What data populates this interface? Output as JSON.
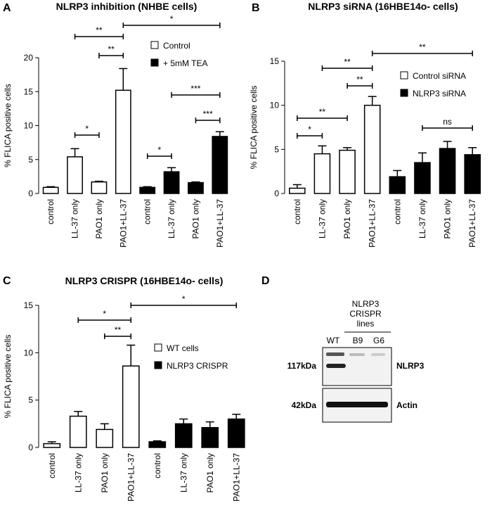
{
  "chart_data": [
    {
      "type": "bar",
      "panel_label": "A",
      "title": "NLRP3 inhibition (NHBE cells)",
      "y_label": "% FLICA positive cells",
      "categories": [
        "control",
        "LL-37 only",
        "PAO1 only",
        "PAO1+LL-37",
        "control",
        "LL-37 only",
        "PAO1 only",
        "PAO1+LL-37"
      ],
      "series": [
        {
          "name": "Control",
          "color": "#ffffff",
          "values": [
            0.9,
            5.4,
            1.7,
            15.2,
            null,
            null,
            null,
            null
          ],
          "errors": [
            0.1,
            1.2,
            0.1,
            3.2,
            null,
            null,
            null,
            null
          ]
        },
        {
          "name": "+ 5mM TEA",
          "color": "#000000",
          "values": [
            null,
            null,
            null,
            null,
            0.9,
            3.2,
            1.6,
            8.4
          ],
          "errors": [
            null,
            null,
            null,
            null,
            0.1,
            0.6,
            0.1,
            0.7
          ]
        }
      ],
      "ylim": [
        0,
        20
      ],
      "yticks": [
        0,
        5,
        10,
        15,
        20
      ],
      "annotations": [
        "**",
        "**",
        "*",
        "*",
        "*",
        "***",
        "***"
      ]
    },
    {
      "type": "bar",
      "panel_label": "B",
      "title": "NLRP3 siRNA (16HBE14o- cells)",
      "y_label": "% FLICA positive cells",
      "categories": [
        "control",
        "LL-37 only",
        "PAO1 only",
        "PAO1+LL-37",
        "control",
        "LL-37 only",
        "PAO1 only",
        "PAO1+LL-37"
      ],
      "series": [
        {
          "name": "Control siRNA",
          "color": "#ffffff",
          "values": [
            0.6,
            4.5,
            4.9,
            10,
            null,
            null,
            null,
            null
          ],
          "errors": [
            0.4,
            0.9,
            0.3,
            1.0,
            null,
            null,
            null,
            null
          ]
        },
        {
          "name": "NLRP3 siRNA",
          "color": "#000000",
          "values": [
            null,
            null,
            null,
            null,
            1.9,
            3.5,
            5.1,
            4.4
          ],
          "errors": [
            null,
            null,
            null,
            null,
            0.7,
            1.1,
            0.8,
            0.8
          ]
        }
      ],
      "ylim": [
        0,
        15
      ],
      "yticks": [
        0,
        5,
        10,
        15
      ],
      "annotations": [
        "**",
        "**",
        "**",
        "**",
        "*",
        "ns"
      ]
    },
    {
      "type": "bar",
      "panel_label": "C",
      "title": "NLRP3 CRISPR (16HBE14o- cells)",
      "y_label": "% FLICA positive cells",
      "categories": [
        "control",
        "LL-37 only",
        "PAO1 only",
        "PAO1+LL-37",
        "control",
        "LL-37 only",
        "PAO1 only",
        "PAO1+LL-37"
      ],
      "series": [
        {
          "name": "WT cells",
          "color": "#ffffff",
          "values": [
            0.4,
            3.3,
            1.9,
            8.6,
            null,
            null,
            null,
            null
          ],
          "errors": [
            0.2,
            0.5,
            0.6,
            2.2,
            null,
            null,
            null,
            null
          ]
        },
        {
          "name": "NLRP3 CRISPR",
          "color": "#000000",
          "values": [
            null,
            null,
            null,
            null,
            0.6,
            2.5,
            2.1,
            3.0
          ],
          "errors": [
            null,
            null,
            null,
            null,
            0.1,
            0.5,
            0.6,
            0.5
          ]
        }
      ],
      "ylim": [
        0,
        15
      ],
      "yticks": [
        0,
        5,
        10,
        15
      ],
      "annotations": [
        "*",
        "*",
        "**"
      ]
    }
  ],
  "blot": {
    "panel_label": "D",
    "group_label": [
      "NLRP3",
      "CRISPR",
      "lines"
    ],
    "lanes": [
      "WT",
      "B9",
      "G6"
    ],
    "markers": [
      {
        "size": "117kDa",
        "protein": "NLRP3"
      },
      {
        "size": "42kDa",
        "protein": "Actin"
      }
    ]
  }
}
